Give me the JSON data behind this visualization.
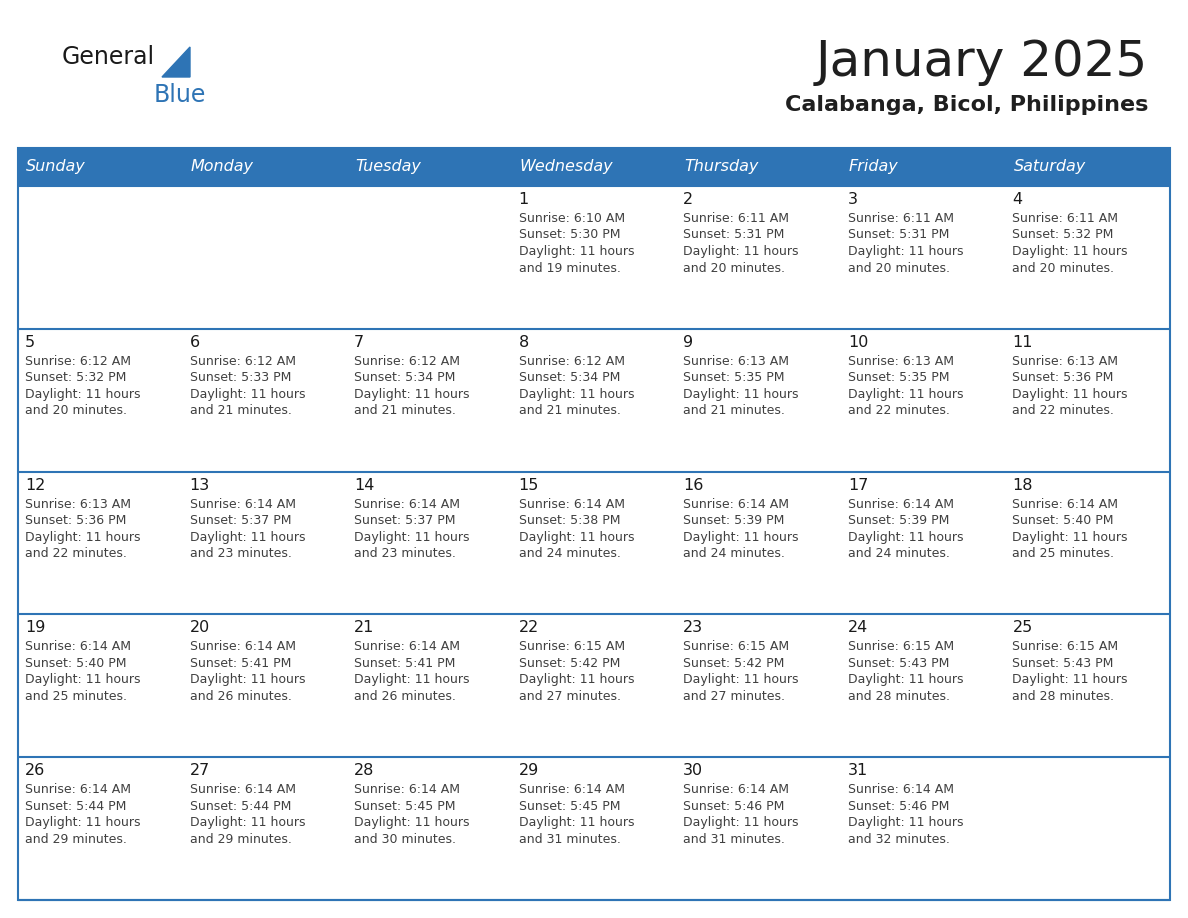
{
  "title": "January 2025",
  "subtitle": "Calabanga, Bicol, Philippines",
  "header_bg_color": "#2E74B5",
  "header_text_color": "#FFFFFF",
  "day_headers": [
    "Sunday",
    "Monday",
    "Tuesday",
    "Wednesday",
    "Thursday",
    "Friday",
    "Saturday"
  ],
  "title_color": "#1F1F1F",
  "subtitle_color": "#1F1F1F",
  "cell_text_color": "#404040",
  "day_num_color": "#1A1A1A",
  "divider_color": "#2E74B5",
  "row_bg_color": "#FFFFFF",
  "logo_general_color": "#1A1A1A",
  "logo_blue_color": "#2E74B5",
  "calendar_data": [
    [
      {
        "day": "",
        "sunrise": "",
        "sunset": "",
        "daylight": ""
      },
      {
        "day": "",
        "sunrise": "",
        "sunset": "",
        "daylight": ""
      },
      {
        "day": "",
        "sunrise": "",
        "sunset": "",
        "daylight": ""
      },
      {
        "day": "1",
        "sunrise": "6:10 AM",
        "sunset": "5:30 PM",
        "daylight": "11 hours and 19 minutes."
      },
      {
        "day": "2",
        "sunrise": "6:11 AM",
        "sunset": "5:31 PM",
        "daylight": "11 hours and 20 minutes."
      },
      {
        "day": "3",
        "sunrise": "6:11 AM",
        "sunset": "5:31 PM",
        "daylight": "11 hours and 20 minutes."
      },
      {
        "day": "4",
        "sunrise": "6:11 AM",
        "sunset": "5:32 PM",
        "daylight": "11 hours and 20 minutes."
      }
    ],
    [
      {
        "day": "5",
        "sunrise": "6:12 AM",
        "sunset": "5:32 PM",
        "daylight": "11 hours and 20 minutes."
      },
      {
        "day": "6",
        "sunrise": "6:12 AM",
        "sunset": "5:33 PM",
        "daylight": "11 hours and 21 minutes."
      },
      {
        "day": "7",
        "sunrise": "6:12 AM",
        "sunset": "5:34 PM",
        "daylight": "11 hours and 21 minutes."
      },
      {
        "day": "8",
        "sunrise": "6:12 AM",
        "sunset": "5:34 PM",
        "daylight": "11 hours and 21 minutes."
      },
      {
        "day": "9",
        "sunrise": "6:13 AM",
        "sunset": "5:35 PM",
        "daylight": "11 hours and 21 minutes."
      },
      {
        "day": "10",
        "sunrise": "6:13 AM",
        "sunset": "5:35 PM",
        "daylight": "11 hours and 22 minutes."
      },
      {
        "day": "11",
        "sunrise": "6:13 AM",
        "sunset": "5:36 PM",
        "daylight": "11 hours and 22 minutes."
      }
    ],
    [
      {
        "day": "12",
        "sunrise": "6:13 AM",
        "sunset": "5:36 PM",
        "daylight": "11 hours and 22 minutes."
      },
      {
        "day": "13",
        "sunrise": "6:14 AM",
        "sunset": "5:37 PM",
        "daylight": "11 hours and 23 minutes."
      },
      {
        "day": "14",
        "sunrise": "6:14 AM",
        "sunset": "5:37 PM",
        "daylight": "11 hours and 23 minutes."
      },
      {
        "day": "15",
        "sunrise": "6:14 AM",
        "sunset": "5:38 PM",
        "daylight": "11 hours and 24 minutes."
      },
      {
        "day": "16",
        "sunrise": "6:14 AM",
        "sunset": "5:39 PM",
        "daylight": "11 hours and 24 minutes."
      },
      {
        "day": "17",
        "sunrise": "6:14 AM",
        "sunset": "5:39 PM",
        "daylight": "11 hours and 24 minutes."
      },
      {
        "day": "18",
        "sunrise": "6:14 AM",
        "sunset": "5:40 PM",
        "daylight": "11 hours and 25 minutes."
      }
    ],
    [
      {
        "day": "19",
        "sunrise": "6:14 AM",
        "sunset": "5:40 PM",
        "daylight": "11 hours and 25 minutes."
      },
      {
        "day": "20",
        "sunrise": "6:14 AM",
        "sunset": "5:41 PM",
        "daylight": "11 hours and 26 minutes."
      },
      {
        "day": "21",
        "sunrise": "6:14 AM",
        "sunset": "5:41 PM",
        "daylight": "11 hours and 26 minutes."
      },
      {
        "day": "22",
        "sunrise": "6:15 AM",
        "sunset": "5:42 PM",
        "daylight": "11 hours and 27 minutes."
      },
      {
        "day": "23",
        "sunrise": "6:15 AM",
        "sunset": "5:42 PM",
        "daylight": "11 hours and 27 minutes."
      },
      {
        "day": "24",
        "sunrise": "6:15 AM",
        "sunset": "5:43 PM",
        "daylight": "11 hours and 28 minutes."
      },
      {
        "day": "25",
        "sunrise": "6:15 AM",
        "sunset": "5:43 PM",
        "daylight": "11 hours and 28 minutes."
      }
    ],
    [
      {
        "day": "26",
        "sunrise": "6:14 AM",
        "sunset": "5:44 PM",
        "daylight": "11 hours and 29 minutes."
      },
      {
        "day": "27",
        "sunrise": "6:14 AM",
        "sunset": "5:44 PM",
        "daylight": "11 hours and 29 minutes."
      },
      {
        "day": "28",
        "sunrise": "6:14 AM",
        "sunset": "5:45 PM",
        "daylight": "11 hours and 30 minutes."
      },
      {
        "day": "29",
        "sunrise": "6:14 AM",
        "sunset": "5:45 PM",
        "daylight": "11 hours and 31 minutes."
      },
      {
        "day": "30",
        "sunrise": "6:14 AM",
        "sunset": "5:46 PM",
        "daylight": "11 hours and 31 minutes."
      },
      {
        "day": "31",
        "sunrise": "6:14 AM",
        "sunset": "5:46 PM",
        "daylight": "11 hours and 32 minutes."
      },
      {
        "day": "",
        "sunrise": "",
        "sunset": "",
        "daylight": ""
      }
    ]
  ]
}
